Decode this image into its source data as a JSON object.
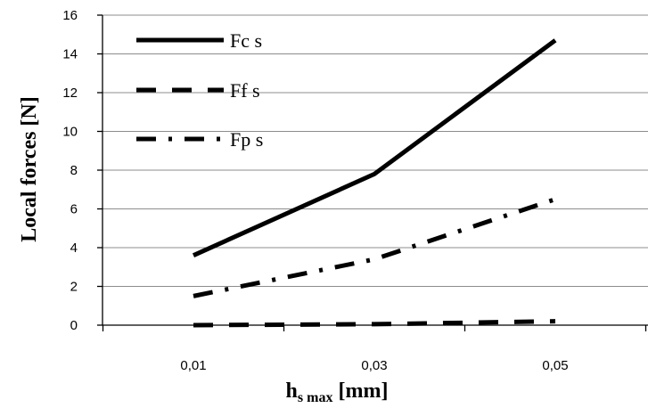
{
  "chart_data": {
    "type": "line",
    "x": [
      "0,01",
      "0,03",
      "0,05"
    ],
    "xlabel": {
      "main": "h",
      "sub": "s max",
      "unit": " [mm]"
    },
    "ylabel": "Local forces [N]",
    "ylim": [
      0,
      16
    ],
    "yticks": [
      0,
      2,
      4,
      6,
      8,
      10,
      12,
      14,
      16
    ],
    "grid": "horizontal",
    "legend_position": "top-left",
    "series": [
      {
        "name": "Fc s",
        "style": "solid",
        "values": [
          3.6,
          7.8,
          14.7
        ]
      },
      {
        "name": "Ff s",
        "style": "dashed",
        "values": [
          0.0,
          0.05,
          0.2
        ]
      },
      {
        "name": "Fp s",
        "style": "dash-dot",
        "values": [
          1.5,
          3.4,
          6.5
        ]
      }
    ]
  },
  "colors": {
    "line": "#000000",
    "grid": "#8c8c8c",
    "axis": "#000000"
  }
}
